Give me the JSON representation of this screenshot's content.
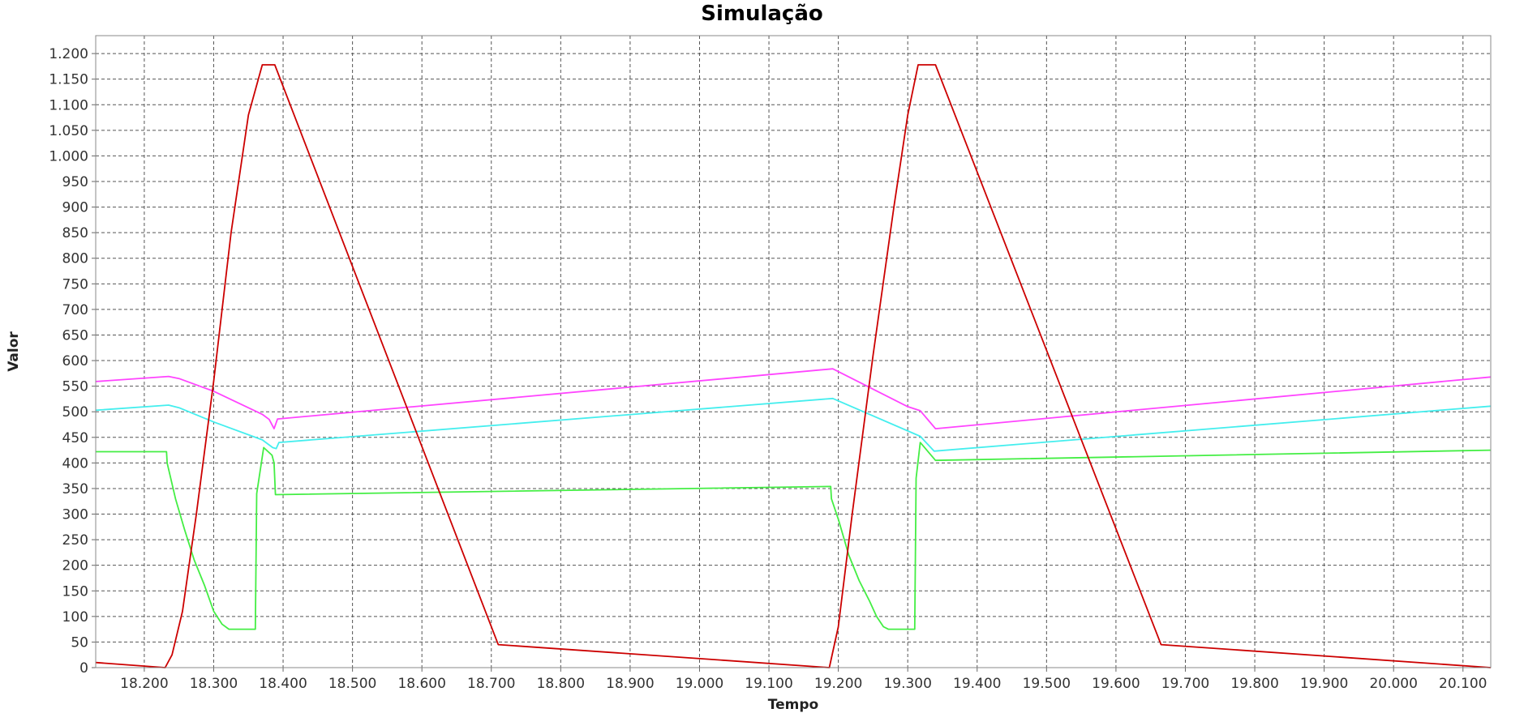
{
  "chart_data": {
    "type": "line",
    "title": "Simulação",
    "xlabel": "Tempo",
    "ylabel": "Valor",
    "xlim": [
      18130,
      20140
    ],
    "ylim": [
      0,
      1235
    ],
    "x_ticks": [
      18200,
      18300,
      18400,
      18500,
      18600,
      18700,
      18800,
      18900,
      19000,
      19100,
      19200,
      19300,
      19400,
      19500,
      19600,
      19700,
      19800,
      19900,
      20000,
      20100
    ],
    "x_tick_labels": [
      "18.200",
      "18.300",
      "18.400",
      "18.500",
      "18.600",
      "18.700",
      "18.800",
      "18.900",
      "19.000",
      "19.100",
      "19.200",
      "19.300",
      "19.400",
      "19.500",
      "19.600",
      "19.700",
      "19.800",
      "19.900",
      "20.000",
      "20.100"
    ],
    "y_ticks": [
      0,
      50,
      100,
      150,
      200,
      250,
      300,
      350,
      400,
      450,
      500,
      550,
      600,
      650,
      700,
      750,
      800,
      850,
      900,
      950,
      1000,
      1050,
      1100,
      1150,
      1200
    ],
    "y_tick_labels": [
      "0",
      "50",
      "100",
      "150",
      "200",
      "250",
      "300",
      "350",
      "400",
      "450",
      "500",
      "550",
      "600",
      "650",
      "700",
      "750",
      "800",
      "850",
      "900",
      "950",
      "1.000",
      "1.050",
      "1.100",
      "1.150",
      "1.200"
    ],
    "grid": true,
    "legend": "none",
    "series": [
      {
        "color": "#ff44ff",
        "points": [
          [
            18130,
            559
          ],
          [
            18235,
            569
          ],
          [
            18250,
            565
          ],
          [
            18300,
            540
          ],
          [
            18370,
            495
          ],
          [
            18380,
            485
          ],
          [
            18387,
            467
          ],
          [
            18392,
            486
          ],
          [
            19192,
            584
          ],
          [
            19300,
            510
          ],
          [
            19318,
            502
          ],
          [
            19340,
            467
          ],
          [
            20140,
            568
          ]
        ]
      },
      {
        "color": "#44eeee",
        "points": [
          [
            18130,
            503
          ],
          [
            18235,
            513
          ],
          [
            18250,
            508
          ],
          [
            18300,
            480
          ],
          [
            18370,
            445
          ],
          [
            18385,
            430
          ],
          [
            18390,
            428
          ],
          [
            18394,
            440
          ],
          [
            19192,
            526
          ],
          [
            19318,
            452
          ],
          [
            19338,
            423
          ],
          [
            20140,
            511
          ]
        ]
      },
      {
        "color": "#44ee44",
        "points": [
          [
            18130,
            422
          ],
          [
            18232,
            422
          ],
          [
            18233,
            400
          ],
          [
            18245,
            330
          ],
          [
            18258,
            270
          ],
          [
            18272,
            210
          ],
          [
            18287,
            160
          ],
          [
            18300,
            110
          ],
          [
            18312,
            85
          ],
          [
            18322,
            75
          ],
          [
            18360,
            75
          ],
          [
            18362,
            340
          ],
          [
            18372,
            430
          ],
          [
            18384,
            415
          ],
          [
            18387,
            400
          ],
          [
            18389,
            338
          ],
          [
            19189,
            354
          ],
          [
            19190,
            330
          ],
          [
            19200,
            290
          ],
          [
            19215,
            220
          ],
          [
            19230,
            170
          ],
          [
            19245,
            130
          ],
          [
            19255,
            100
          ],
          [
            19265,
            80
          ],
          [
            19272,
            75
          ],
          [
            19310,
            75
          ],
          [
            19312,
            370
          ],
          [
            19318,
            440
          ],
          [
            19340,
            405
          ],
          [
            20140,
            425
          ]
        ]
      },
      {
        "color": "#cc0000",
        "points": [
          [
            18130,
            10
          ],
          [
            18230,
            0
          ],
          [
            18240,
            25
          ],
          [
            18255,
            110
          ],
          [
            18275,
            300
          ],
          [
            18300,
            560
          ],
          [
            18325,
            850
          ],
          [
            18350,
            1080
          ],
          [
            18370,
            1178
          ],
          [
            18388,
            1178
          ],
          [
            18710,
            45
          ],
          [
            19187,
            0
          ],
          [
            19200,
            80
          ],
          [
            19220,
            300
          ],
          [
            19250,
            610
          ],
          [
            19280,
            900
          ],
          [
            19300,
            1080
          ],
          [
            19315,
            1178
          ],
          [
            19340,
            1178
          ],
          [
            19665,
            45
          ],
          [
            20140,
            0
          ]
        ]
      }
    ]
  }
}
